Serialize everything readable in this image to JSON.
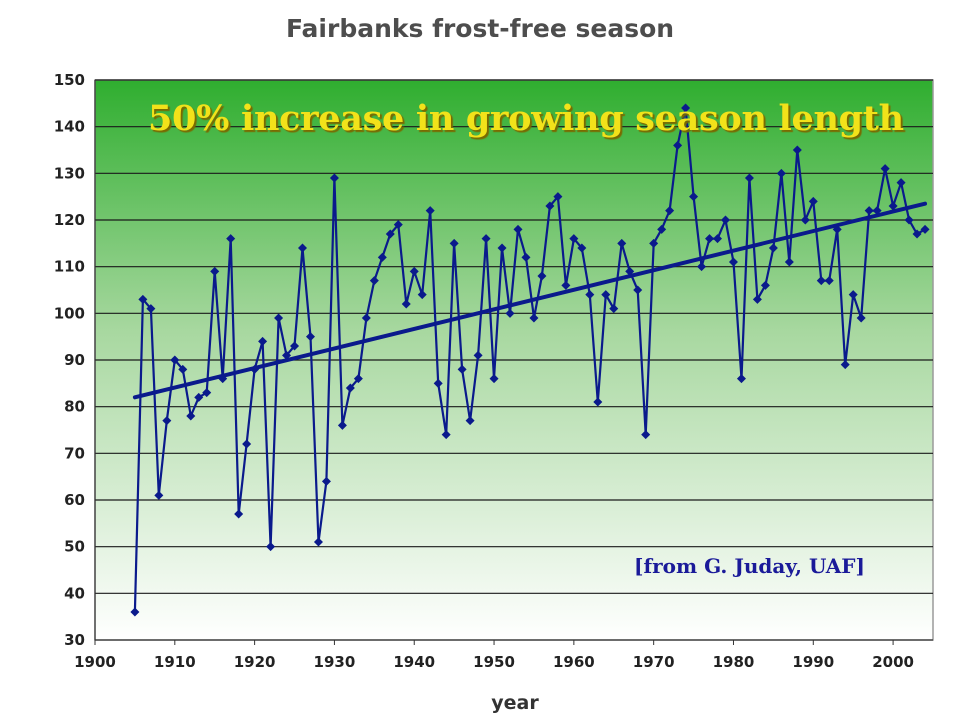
{
  "chart_data": {
    "type": "line",
    "title": "Fairbanks frost-free season",
    "xlabel": "year",
    "ylabel": "",
    "xlim": [
      1900,
      2005
    ],
    "ylim": [
      30,
      150
    ],
    "xticks": [
      1900,
      1910,
      1920,
      1930,
      1940,
      1950,
      1960,
      1970,
      1980,
      1990,
      2000
    ],
    "yticks": [
      30,
      40,
      50,
      60,
      70,
      80,
      90,
      100,
      110,
      120,
      130,
      140,
      150
    ],
    "grid": "horizontal",
    "background": {
      "top": "#2fae2f",
      "bottom": "#ffffff"
    },
    "annotations": {
      "headline": "50% increase in growing season length",
      "source": "[from G. Juday, UAF]"
    },
    "series": [
      {
        "color": "#0a1a8c",
        "x": [
          1905,
          1906,
          1907,
          1908,
          1909,
          1910,
          1911,
          1912,
          1913,
          1914,
          1915,
          1916,
          1917,
          1918,
          1919,
          1920,
          1921,
          1922,
          1923,
          1924,
          1925,
          1926,
          1927,
          1928,
          1929,
          1930,
          1931,
          1932,
          1933,
          1934,
          1935,
          1936,
          1937,
          1938,
          1939,
          1940,
          1941,
          1942,
          1943,
          1944,
          1945,
          1946,
          1947,
          1948,
          1949,
          1950,
          1951,
          1952,
          1953,
          1954,
          1955,
          1956,
          1957,
          1958,
          1959,
          1960,
          1961,
          1962,
          1963,
          1964,
          1965,
          1966,
          1967,
          1968,
          1969,
          1970,
          1971,
          1972,
          1973,
          1974,
          1975,
          1976,
          1977,
          1978,
          1979,
          1980,
          1981,
          1982,
          1983,
          1984,
          1985,
          1986,
          1987,
          1988,
          1989,
          1990,
          1991,
          1992,
          1993,
          1994,
          1995,
          1996,
          1997,
          1998,
          1999,
          2000,
          2001,
          2002,
          2003,
          2004
        ],
        "values": [
          36,
          103,
          101,
          61,
          77,
          90,
          88,
          78,
          82,
          83,
          109,
          86,
          116,
          57,
          72,
          88,
          94,
          50,
          99,
          91,
          93,
          114,
          95,
          51,
          64,
          129,
          76,
          84,
          86,
          99,
          107,
          112,
          117,
          119,
          102,
          109,
          104,
          122,
          85,
          74,
          115,
          88,
          77,
          91,
          116,
          86,
          114,
          100,
          118,
          112,
          99,
          108,
          123,
          125,
          106,
          116,
          114,
          104,
          81,
          104,
          101,
          115,
          109,
          105,
          74,
          115,
          118,
          122,
          136,
          144,
          125,
          110,
          116,
          116,
          120,
          111,
          86,
          129,
          103,
          106,
          114,
          130,
          111,
          135,
          120,
          124,
          107,
          107,
          118,
          89,
          104,
          99,
          122,
          122,
          131,
          123,
          128,
          120,
          117,
          118
        ]
      },
      {
        "type": "trendline",
        "color": "#0a1a8c",
        "x": [
          1905,
          2004
        ],
        "values": [
          82,
          123.5
        ]
      }
    ]
  }
}
